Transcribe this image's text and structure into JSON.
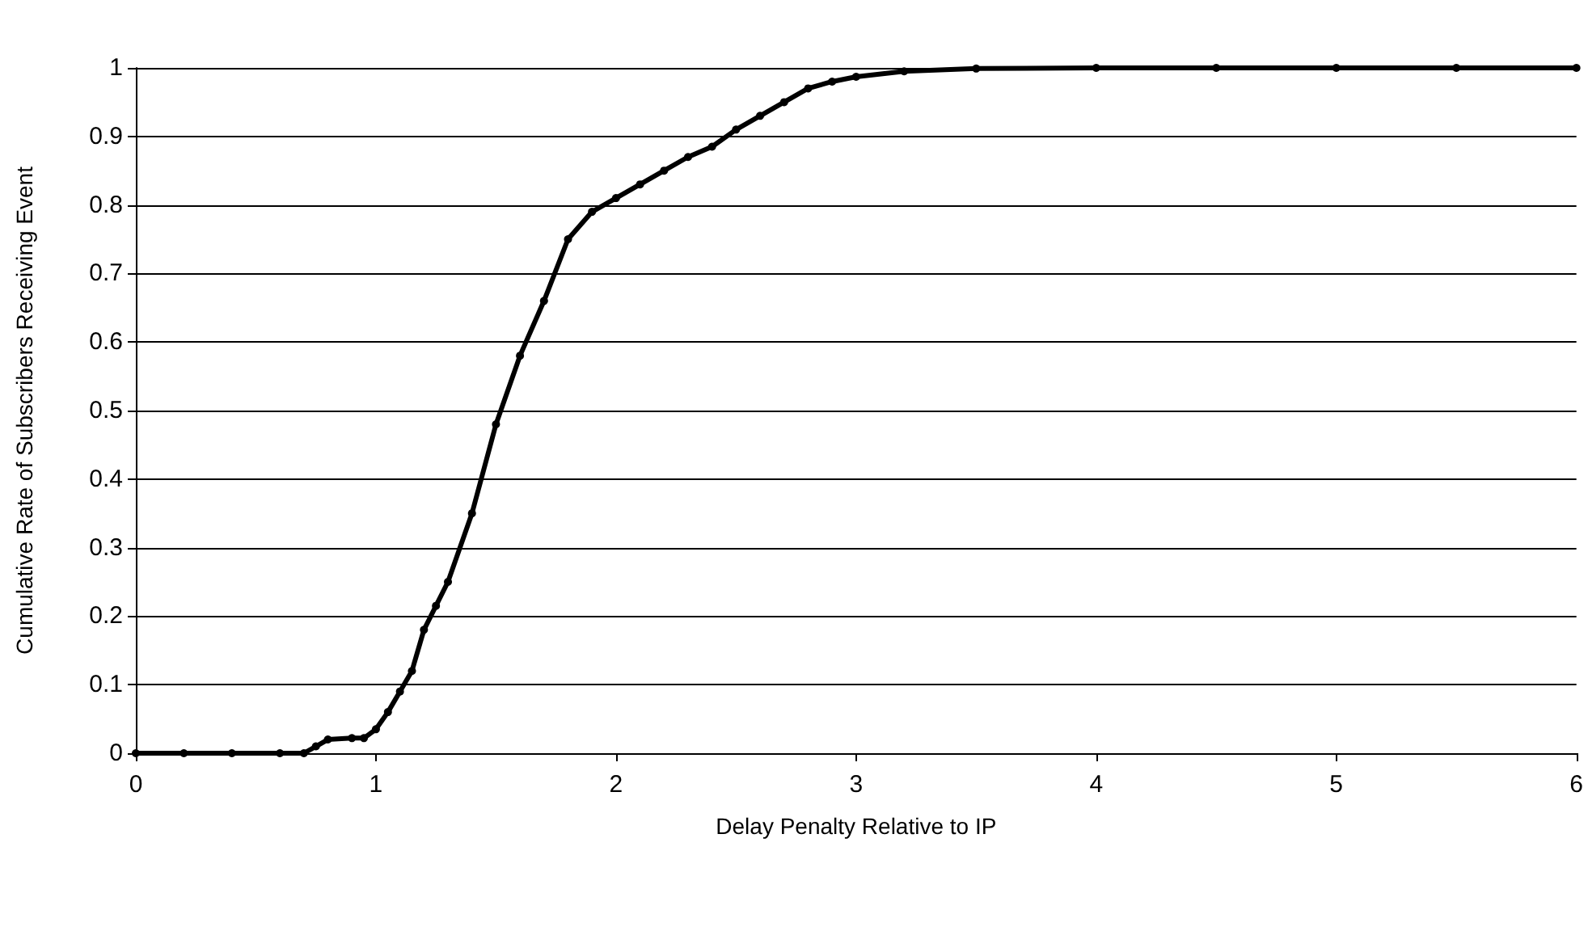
{
  "chart_data": {
    "type": "line",
    "xlabel": "Delay Penalty Relative to IP",
    "ylabel": "Cumulative Rate of Subscribers Receiving Event",
    "x": [
      0,
      0.2,
      0.4,
      0.6,
      0.7,
      0.75,
      0.8,
      0.9,
      0.95,
      1.0,
      1.05,
      1.1,
      1.15,
      1.2,
      1.25,
      1.3,
      1.4,
      1.5,
      1.6,
      1.7,
      1.8,
      1.9,
      2.0,
      2.1,
      2.2,
      2.3,
      2.4,
      2.5,
      2.6,
      2.7,
      2.8,
      2.9,
      3.0,
      3.2,
      3.5,
      4,
      4.5,
      5,
      5.5,
      6
    ],
    "series": [
      {
        "color": "#000000",
        "values": [
          0,
          0,
          0,
          0,
          0,
          0.01,
          0.02,
          0.022,
          0.022,
          0.035,
          0.06,
          0.09,
          0.12,
          0.18,
          0.215,
          0.25,
          0.35,
          0.48,
          0.58,
          0.66,
          0.75,
          0.79,
          0.81,
          0.83,
          0.85,
          0.87,
          0.885,
          0.91,
          0.93,
          0.95,
          0.97,
          0.98,
          0.987,
          0.995,
          0.999,
          1,
          1,
          1,
          1,
          1
        ]
      }
    ],
    "xlim": [
      0,
      6
    ],
    "xticks": [
      0,
      1,
      2,
      3,
      4,
      5,
      6
    ],
    "ylim": [
      0,
      1
    ],
    "yticks": [
      0,
      0.1,
      0.2,
      0.3,
      0.4,
      0.5,
      0.6,
      0.7,
      0.8,
      0.9,
      1
    ],
    "grid": "y",
    "marker": "circle",
    "line_style": "solid"
  }
}
